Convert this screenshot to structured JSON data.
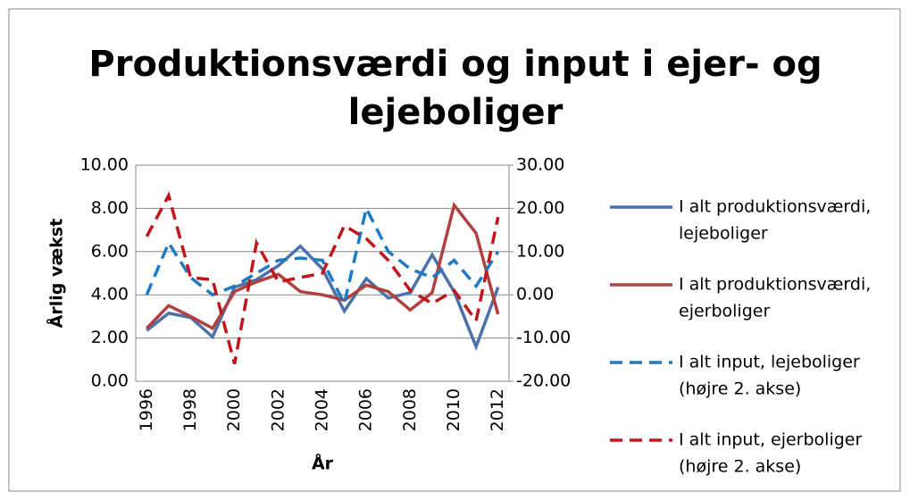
{
  "chart_data": {
    "type": "line",
    "title": [
      "Produktionsværdi og input i ejer- og",
      "lejeboliger"
    ],
    "y_label": "Årlig vækst",
    "x_label": "År",
    "categories": [
      "1996",
      null,
      "1998",
      null,
      "2000",
      null,
      "2002",
      null,
      "2004",
      null,
      "2006",
      null,
      "2008",
      null,
      "2010",
      null,
      "2012"
    ],
    "series": [
      {
        "name": [
          "I alt produktionsværdi,",
          "lejeboliger"
        ],
        "color": "#4a72a8",
        "dash": false,
        "axis": "y",
        "values": [
          2.35,
          3.15,
          2.95,
          2.05,
          4.35,
          4.7,
          5.35,
          6.25,
          5.2,
          3.25,
          4.75,
          3.85,
          4.1,
          5.85,
          4.15,
          1.6,
          4.35
        ]
      },
      {
        "name": [
          "I alt produktionsværdi,",
          "ejerboliger"
        ],
        "color": "#b0413e",
        "dash": false,
        "axis": "y",
        "values": [
          2.45,
          3.5,
          3.0,
          2.45,
          4.15,
          4.6,
          4.95,
          4.15,
          4.0,
          3.75,
          4.45,
          4.15,
          3.3,
          4.1,
          8.15,
          6.85,
          3.1
        ]
      },
      {
        "name": [
          "I alt input, lejeboliger",
          "(højre 2. akse)"
        ],
        "color": "#1f7ac4",
        "dash": true,
        "axis": "y2",
        "values": [
          0,
          12,
          4,
          0,
          2,
          5,
          8,
          8.5,
          8,
          -2,
          20,
          10,
          6,
          4,
          8,
          2,
          10
        ]
      },
      {
        "name": [
          "I alt input, ejerboliger",
          "(højre 2. akse)"
        ],
        "color": "#c0161c",
        "dash": true,
        "axis": "y2",
        "values": [
          13.5,
          23,
          4,
          3.5,
          -16,
          12,
          3,
          4,
          5,
          16,
          13,
          8,
          1,
          -2,
          1,
          -6,
          18
        ]
      }
    ],
    "ylim": [
      0,
      10
    ],
    "yticks": [
      {
        "value": 0,
        "label": "0.00"
      },
      {
        "value": 2,
        "label": "2.00"
      },
      {
        "value": 4,
        "label": "4.00"
      },
      {
        "value": 6,
        "label": "6.00"
      },
      {
        "value": 8,
        "label": "8.00"
      },
      {
        "value": 10,
        "label": "10.00"
      }
    ],
    "y2lim": [
      -20,
      30
    ],
    "y2ticks": [
      {
        "value": -20,
        "label": "-20.00"
      },
      {
        "value": -10,
        "label": "-10.00"
      },
      {
        "value": 0,
        "label": "0.00"
      },
      {
        "value": 10,
        "label": "10.00"
      },
      {
        "value": 20,
        "label": "20.00"
      },
      {
        "value": 30,
        "label": "30.00"
      }
    ],
    "grid": true,
    "legend": "right"
  }
}
